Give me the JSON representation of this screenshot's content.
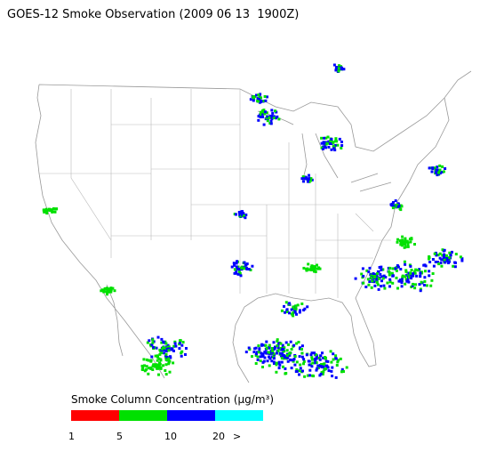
{
  "title": "GOES-12 Smoke Observation (2009 06 13  1900Z)",
  "legend": {
    "title": "Smoke Column Concentration (μg/m³)",
    "colors": [
      "#ff0000",
      "#00e000",
      "#0000ff",
      "#00ffff"
    ],
    "labels": [
      "1",
      "5",
      "10",
      "20",
      ">"
    ]
  }
}
